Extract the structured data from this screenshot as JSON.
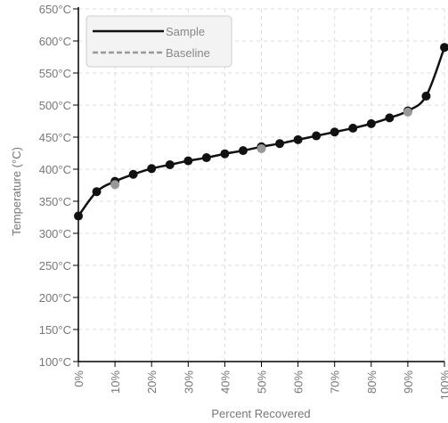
{
  "chart_data": {
    "type": "line",
    "title": "",
    "xlabel": "Percent Recovered",
    "ylabel": "Temperature (°C)",
    "xlim": [
      0,
      100
    ],
    "ylim": [
      100,
      650
    ],
    "x_ticks": [
      0,
      10,
      20,
      30,
      40,
      50,
      60,
      70,
      80,
      90,
      100
    ],
    "x_tick_labels": [
      "0%",
      "10%",
      "20%",
      "30%",
      "40%",
      "50%",
      "60%",
      "70%",
      "80%",
      "90%",
      "100%"
    ],
    "y_ticks": [
      100,
      150,
      200,
      250,
      300,
      350,
      400,
      450,
      500,
      550,
      600,
      650
    ],
    "y_tick_labels": [
      "100°C",
      "150°C",
      "200°C",
      "250°C",
      "300°C",
      "350°C",
      "400°C",
      "450°C",
      "500°C",
      "550°C",
      "600°C",
      "650°C"
    ],
    "grid": true,
    "legend_position": "top-left",
    "series": [
      {
        "name": "Sample",
        "color": "#111111",
        "style": "solid",
        "x": [
          0,
          5,
          10,
          15,
          20,
          25,
          30,
          35,
          40,
          45,
          50,
          55,
          60,
          65,
          70,
          75,
          80,
          85,
          90,
          95,
          100
        ],
        "y": [
          327,
          365,
          381,
          392,
          401,
          407,
          413,
          418,
          424,
          429,
          435,
          440,
          446,
          452,
          458,
          464,
          471,
          480,
          491,
          514,
          590
        ]
      },
      {
        "name": "Baseline",
        "color": "#999999",
        "style": "dashed",
        "x": [
          10,
          50,
          90
        ],
        "y": [
          376,
          432,
          489
        ]
      }
    ]
  }
}
